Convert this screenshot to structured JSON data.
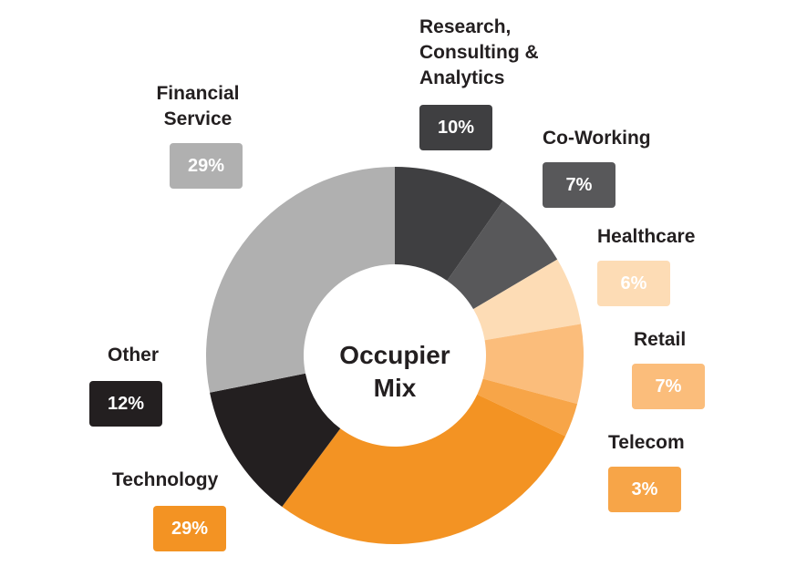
{
  "chart_data": {
    "type": "donut",
    "center_label": "Occupier Mix",
    "categories": [
      "Research, Consulting & Analytics",
      "Co-Working",
      "Healthcare",
      "Retail",
      "Telecom",
      "Technology",
      "Other",
      "Financial Service"
    ],
    "values": [
      10,
      7,
      6,
      7,
      3,
      29,
      12,
      29
    ],
    "value_labels": [
      "10%",
      "7%",
      "6%",
      "7%",
      "3%",
      "29%",
      "12%",
      "29%"
    ],
    "colors": [
      "#3f3f41",
      "#58585a",
      "#fddcb5",
      "#fbbd7b",
      "#f7a548",
      "#f39323",
      "#231f20",
      "#b0b0b0"
    ]
  }
}
